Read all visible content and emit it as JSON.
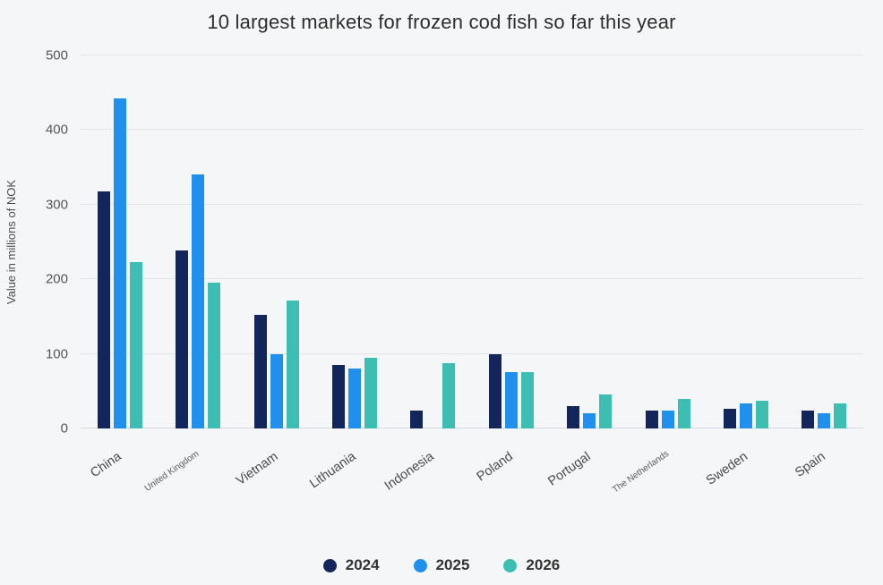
{
  "chart_data": {
    "type": "bar",
    "title": "10 largest markets for frozen cod fish so far this year",
    "ylabel": "Value in millions of NOK",
    "xlabel": "",
    "ylim": [
      0,
      500
    ],
    "yticks": [
      0,
      100,
      200,
      300,
      400,
      500
    ],
    "grid": true,
    "legend_position": "bottom",
    "categories": [
      "China",
      "United Kingdom",
      "Vietnam",
      "Lithuania",
      "Indonesia",
      "Poland",
      "Portugal",
      "The Netherlands",
      "Sweden",
      "Spain"
    ],
    "series": [
      {
        "name": "2024",
        "color": "#13265c",
        "values": [
          318,
          239,
          152,
          85,
          24,
          99,
          30,
          24,
          26,
          24
        ]
      },
      {
        "name": "2025",
        "color": "#2090ee",
        "values": [
          442,
          340,
          99,
          80,
          null,
          76,
          21,
          24,
          34,
          21
        ]
      },
      {
        "name": "2026",
        "color": "#3cbeb3",
        "values": [
          223,
          196,
          172,
          95,
          88,
          76,
          45,
          40,
          37,
          34
        ]
      }
    ]
  }
}
